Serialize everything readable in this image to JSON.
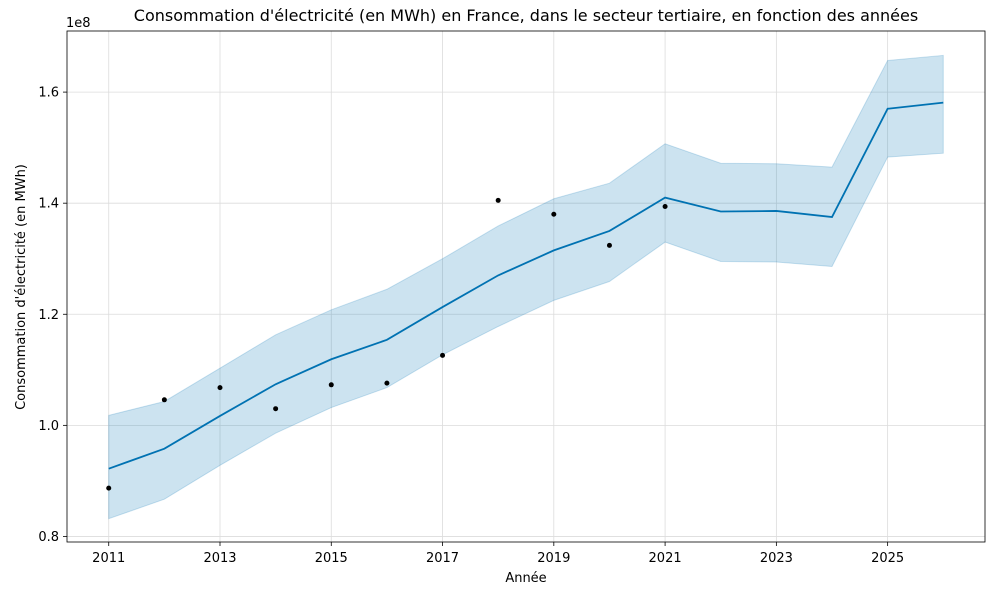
{
  "chart_data": {
    "type": "line",
    "title": "Consommation d'électricité (en MWh) en France, dans le secteur tertiaire, en fonction des années",
    "xlabel": "Année",
    "ylabel": "Consommation d'électricité (en MWh)",
    "y_offset_label": "1e8",
    "xlim": [
      2010.25,
      2026.75
    ],
    "ylim": [
      79000000.0,
      171000000.0
    ],
    "x_ticks": [
      2011,
      2013,
      2015,
      2017,
      2019,
      2021,
      2023,
      2025
    ],
    "x_tick_labels": [
      "2011",
      "2013",
      "2015",
      "2017",
      "2019",
      "2021",
      "2023",
      "2025"
    ],
    "y_ticks": [
      80000000.0,
      100000000.0,
      120000000.0,
      140000000.0,
      160000000.0
    ],
    "y_tick_labels": [
      "0.8",
      "1.0",
      "1.2",
      "1.4",
      "1.6"
    ],
    "grid": true,
    "colors": {
      "forecast": "#0072b2",
      "band": "#0072b2",
      "observed": "#000000"
    },
    "forecast": {
      "x": [
        2011,
        2012,
        2013,
        2014,
        2015,
        2016,
        2017,
        2018,
        2019,
        2020,
        2021,
        2022,
        2023,
        2024,
        2025,
        2026
      ],
      "yhat": [
        92200000,
        95800000,
        101700000,
        107400000,
        111900000,
        115400000,
        121300000,
        127000000,
        131500000,
        135000000,
        141000000,
        138500000,
        138600000,
        137500000,
        157000000,
        158100000
      ],
      "yhat_lower": [
        83200000,
        86700000,
        92800000,
        98600000,
        103200000,
        106800000,
        112700000,
        117800000,
        122500000,
        125900000,
        133000000,
        129500000,
        129400000,
        128600000,
        148300000,
        149000000
      ],
      "yhat_upper": [
        101800000,
        104300000,
        110300000,
        116300000,
        120800000,
        124500000,
        130000000,
        135900000,
        140800000,
        143600000,
        150700000,
        147200000,
        147100000,
        146500000,
        165700000,
        166600000
      ]
    },
    "observed": {
      "x": [
        2011,
        2012,
        2013,
        2014,
        2015,
        2016,
        2017,
        2018,
        2019,
        2020,
        2021
      ],
      "y": [
        88700000,
        104600000,
        106800000,
        103000000,
        107300000,
        107600000,
        112600000,
        140500000,
        138000000,
        132400000,
        139400000
      ]
    }
  }
}
